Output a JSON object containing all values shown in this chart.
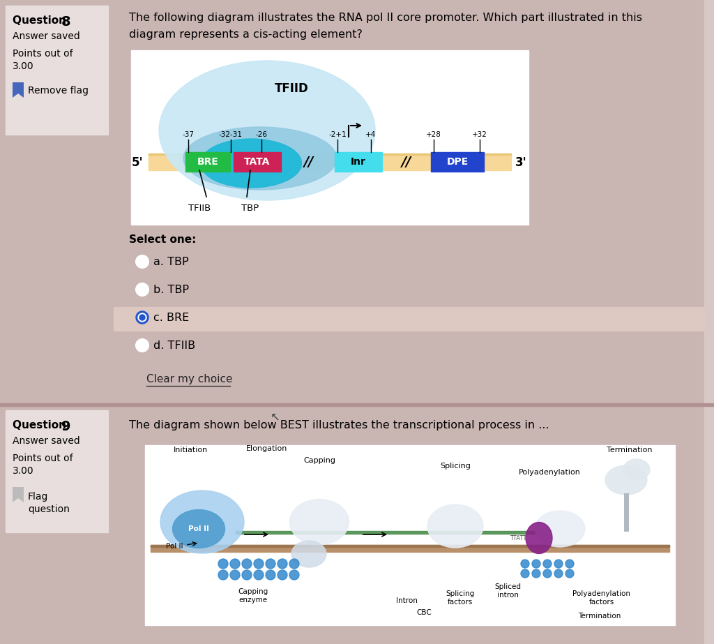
{
  "bg_color": "#c9b5b2",
  "sidebar_bg": "#e8dedd",
  "sidebar_box_bg": "#e8dedd",
  "sidebar_box_border": "#c8b8b5",
  "content_bg": "#c9b5b2",
  "diagram_bg": "#ffffff",
  "option_highlight_bg": "#ddc8c2",
  "q8_question_line1": "The following diagram illustrates the RNA pol II core promoter. Which part illustrated in this",
  "q8_question_line2": "diagram represents a cis-acting element?",
  "q8_options": [
    "a. TBP",
    "b. TBP",
    "c. BRE",
    "d. TFIIB"
  ],
  "q8_selected": 2,
  "q8_clear": "Clear my choice",
  "q9_question": "The diagram shown below BEST illustrates the transcriptional process in ..."
}
